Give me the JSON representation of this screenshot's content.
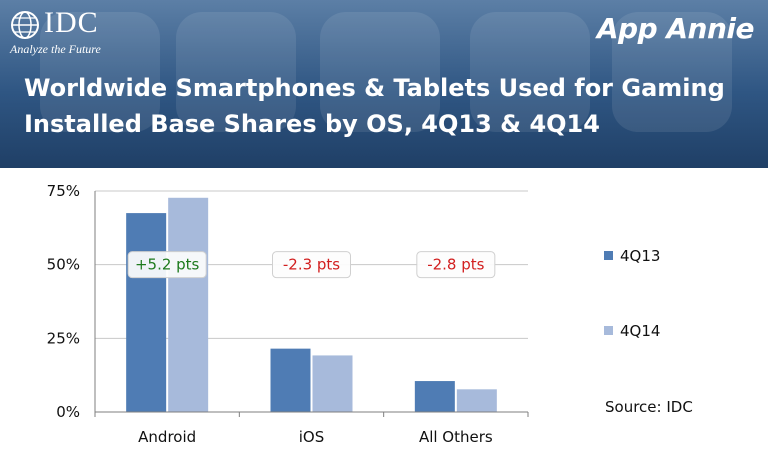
{
  "header": {
    "idc_name": "IDC",
    "idc_tagline": "Analyze the Future",
    "partner_name": "App Annie",
    "title_line1": "Worldwide Smartphones & Tablets Used for Gaming",
    "title_line2": "Installed Base Shares by OS, 4Q13 & 4Q14"
  },
  "source": "Source: IDC",
  "colors": {
    "series_4q13": "#4f7cb4",
    "series_4q14": "#a7badb",
    "positive": "#1d7a1d",
    "negative": "#d21f1f"
  },
  "chart_data": {
    "type": "bar",
    "categories": [
      "Android",
      "iOS",
      "All Others"
    ],
    "series": [
      {
        "name": "4Q13",
        "values": [
          67.5,
          21.5,
          10.5
        ]
      },
      {
        "name": "4Q14",
        "values": [
          72.7,
          19.2,
          7.7
        ]
      }
    ],
    "ylim": [
      0,
      75
    ],
    "yticks": [
      "0%",
      "25%",
      "50%",
      "75%"
    ],
    "grid": true,
    "legend_position": "right",
    "annotations": [
      {
        "category": "Android",
        "text": "+5.2 pts",
        "tone": "positive"
      },
      {
        "category": "iOS",
        "text": "-2.3 pts",
        "tone": "negative"
      },
      {
        "category": "All Others",
        "text": "-2.8 pts",
        "tone": "negative"
      }
    ]
  }
}
